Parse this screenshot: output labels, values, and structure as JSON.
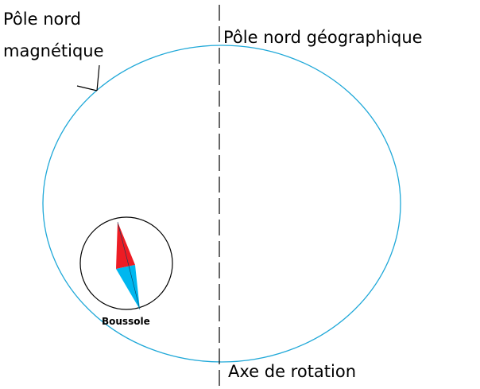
{
  "labels": {
    "magnetic_north_line1": "Pôle nord",
    "magnetic_north_line2": "magnétique",
    "geographic_north": "Pôle nord géographique",
    "rotation_axis": "Axe de rotation",
    "compass": "Boussole"
  },
  "colors": {
    "earth_outline": "#1fa8d8",
    "axis": "#000000",
    "needle_north": "#ed1c24",
    "needle_south": "#00b7ef",
    "compass_ring": "#000000"
  },
  "icons": {
    "compass": "compass-icon",
    "pointer": "arrow-icon"
  }
}
